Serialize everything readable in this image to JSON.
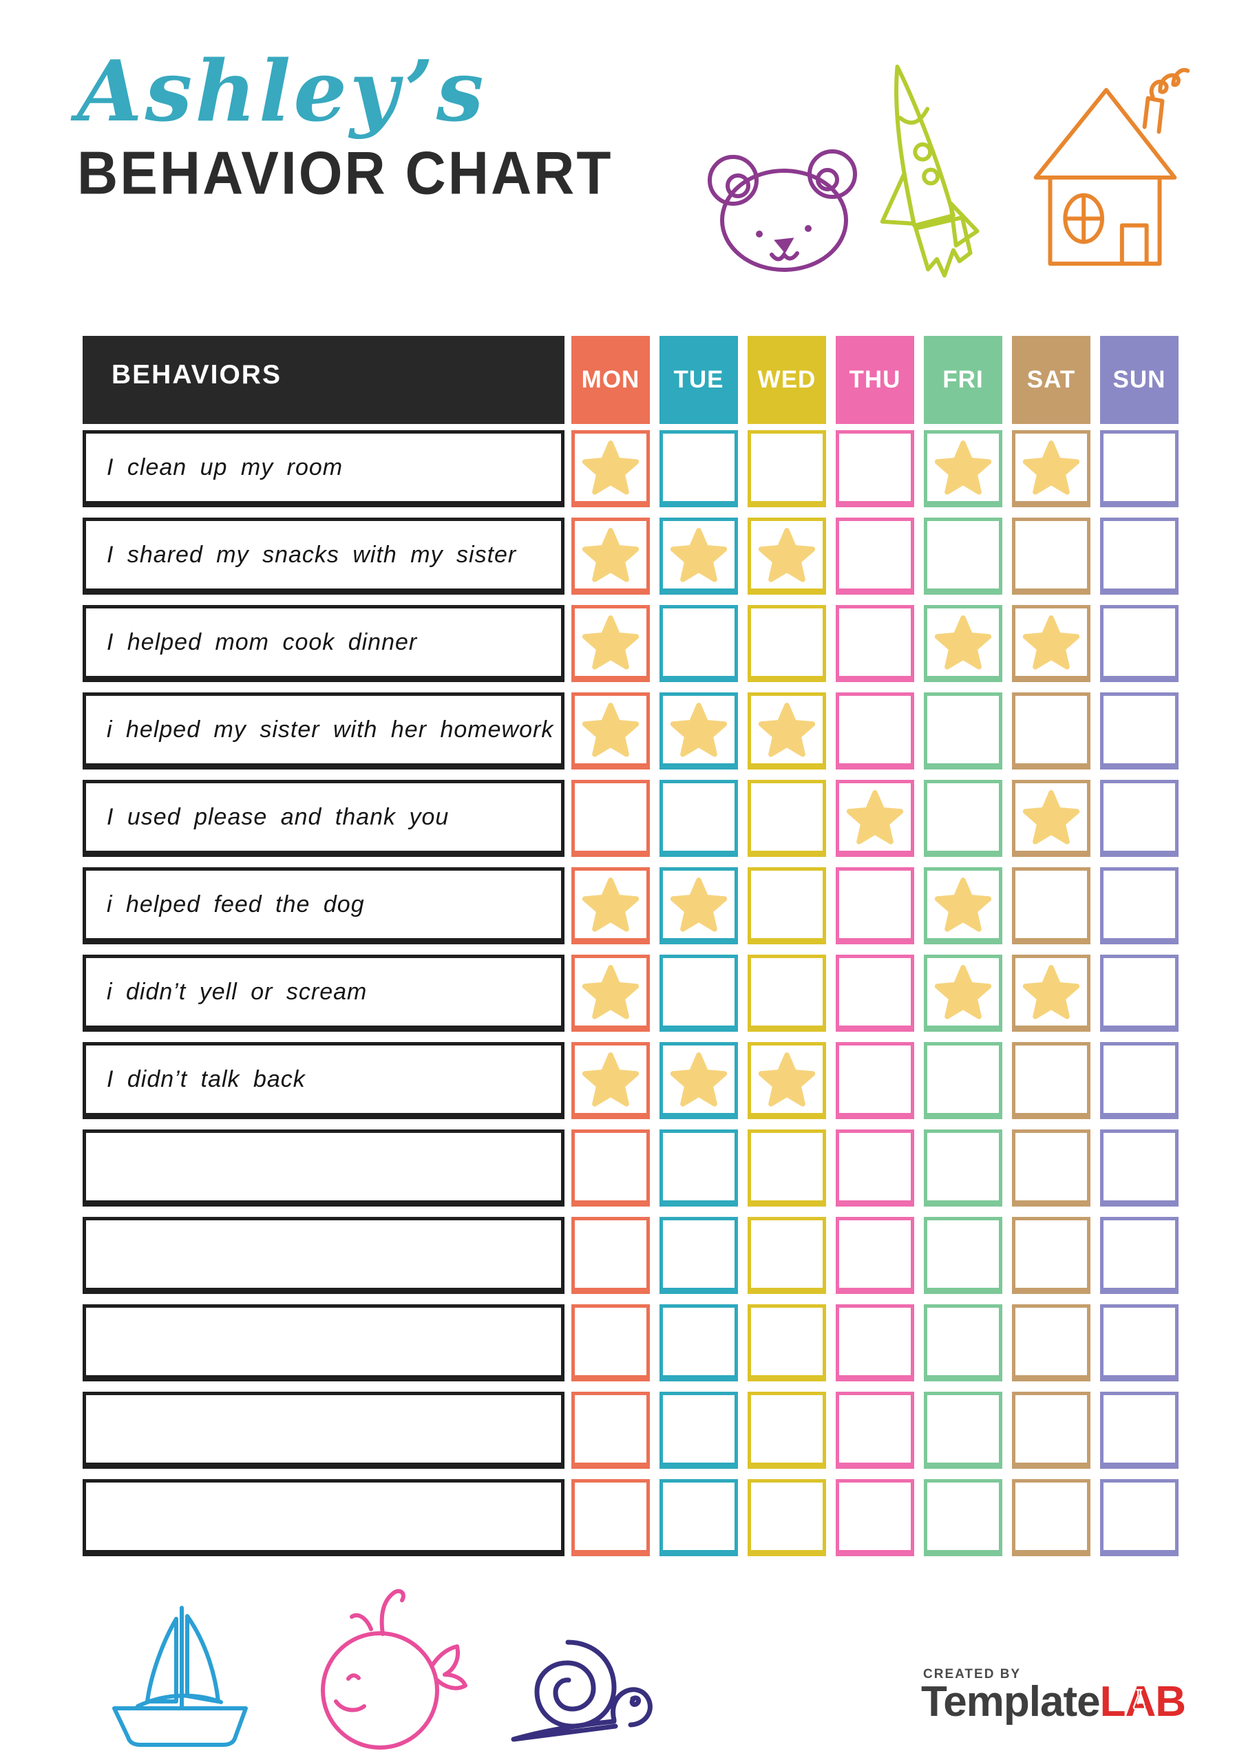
{
  "header": {
    "name_script": "Ashley’s",
    "name_color": "#38a9bf",
    "title": "BEHAVIOR CHART",
    "title_color": "#2c2c2c",
    "doodles": [
      "bear-icon",
      "rocket-icon",
      "house-icon"
    ]
  },
  "table": {
    "behaviors_header": "BEHAVIORS",
    "header_bg": "#282828",
    "star_color": "#f6d37b",
    "behavior_border": "#1e1e1e",
    "days": [
      {
        "label": "MON",
        "color": "#ec7155"
      },
      {
        "label": "TUE",
        "color": "#2ea9bd"
      },
      {
        "label": "WED",
        "color": "#dcc32b"
      },
      {
        "label": "THU",
        "color": "#ef6cae"
      },
      {
        "label": "FRI",
        "color": "#7dc898"
      },
      {
        "label": "SAT",
        "color": "#c59d6b"
      },
      {
        "label": "SUN",
        "color": "#8b89c5"
      }
    ],
    "rows": [
      {
        "behavior": "I clean up my room",
        "stars": [
          1,
          0,
          0,
          0,
          1,
          1,
          0
        ]
      },
      {
        "behavior": "I shared my snacks with my sister",
        "stars": [
          1,
          1,
          1,
          0,
          0,
          0,
          0
        ]
      },
      {
        "behavior": "I helped mom cook dinner",
        "stars": [
          1,
          0,
          0,
          0,
          1,
          1,
          0
        ]
      },
      {
        "behavior": "i helped my sister with her homework",
        "stars": [
          1,
          1,
          1,
          0,
          0,
          0,
          0
        ]
      },
      {
        "behavior": "I used please and thank you",
        "stars": [
          0,
          0,
          0,
          1,
          0,
          1,
          0
        ]
      },
      {
        "behavior": "i helped feed the dog",
        "stars": [
          1,
          1,
          0,
          0,
          1,
          0,
          0
        ]
      },
      {
        "behavior": "i didn’t yell or scream",
        "stars": [
          1,
          0,
          0,
          0,
          1,
          1,
          0
        ]
      },
      {
        "behavior": "I didn’t talk back",
        "stars": [
          1,
          1,
          1,
          0,
          0,
          0,
          0
        ]
      },
      {
        "behavior": "",
        "stars": [
          0,
          0,
          0,
          0,
          0,
          0,
          0
        ]
      },
      {
        "behavior": "",
        "stars": [
          0,
          0,
          0,
          0,
          0,
          0,
          0
        ]
      },
      {
        "behavior": "",
        "stars": [
          0,
          0,
          0,
          0,
          0,
          0,
          0
        ]
      },
      {
        "behavior": "",
        "stars": [
          0,
          0,
          0,
          0,
          0,
          0,
          0
        ]
      },
      {
        "behavior": "",
        "stars": [
          0,
          0,
          0,
          0,
          0,
          0,
          0
        ]
      }
    ]
  },
  "footer": {
    "doodles": [
      "sailboat-icon",
      "whale-icon",
      "snail-icon"
    ],
    "created_by": "CREATED BY",
    "brand_dark": "Template",
    "brand_red": "LAB",
    "brand_color_dark": "#3e3e3e",
    "brand_color_red": "#e02b2b"
  },
  "doodle_colors": {
    "bear": "#8b3a8e",
    "rocket": "#b5cc30",
    "house": "#e8862f",
    "sailboat": "#2b9fd4",
    "whale": "#e84e9b",
    "snail": "#38307e"
  }
}
